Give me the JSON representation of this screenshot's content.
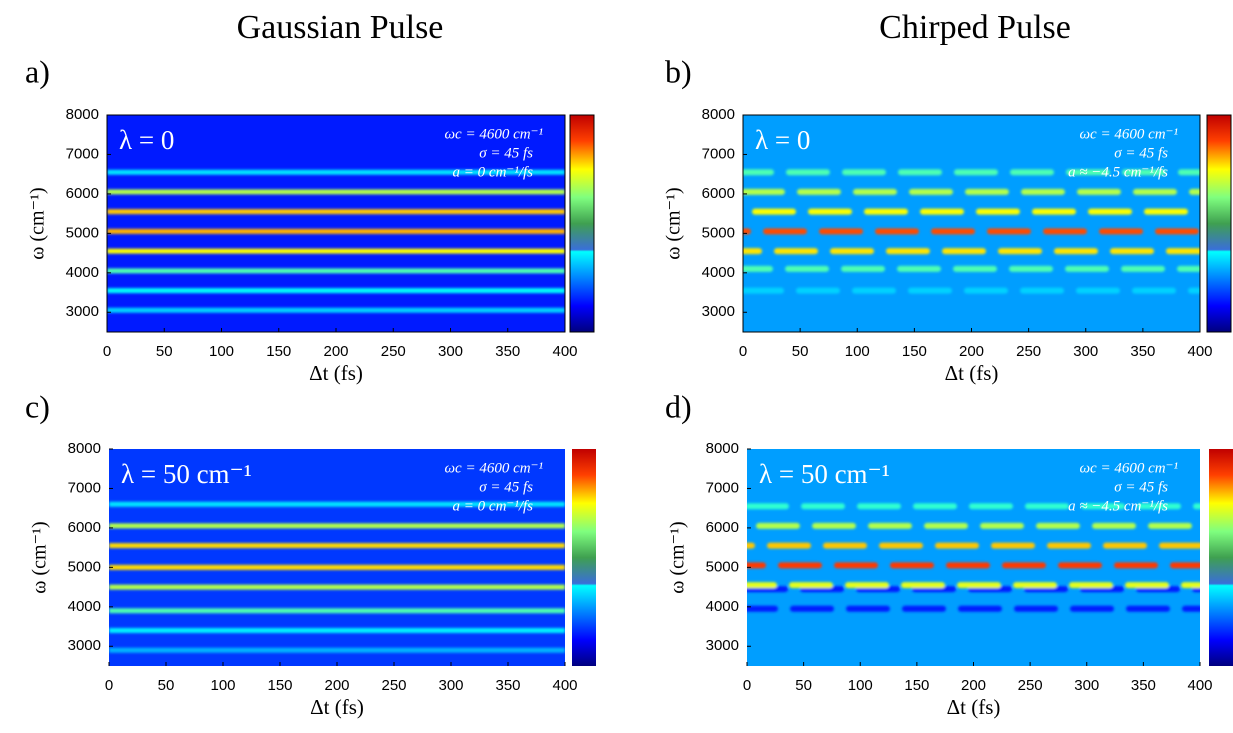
{
  "column_titles": [
    "Gaussian Pulse",
    "Chirped Pulse"
  ],
  "chart_data": [
    {
      "type": "heatmap",
      "label": "a)",
      "annotation": "λ = 0",
      "notes": [
        "ωc = 4600 cm⁻¹",
        "σ = 45 fs",
        "a = 0 cm⁻¹/fs"
      ],
      "xlabel": "Δt (fs)",
      "ylabel": "ω (cm⁻¹)",
      "xlim": [
        0,
        400
      ],
      "xticks": [
        0,
        50,
        100,
        150,
        200,
        250,
        300,
        350,
        400
      ],
      "ylim": [
        2500,
        8000
      ],
      "yticks": [
        3000,
        4000,
        5000,
        6000,
        7000,
        8000
      ],
      "background": 0.15,
      "modulated": false,
      "colorbar_border": true,
      "bands": [
        {
          "y": 3050,
          "intensity": 0.33
        },
        {
          "y": 3550,
          "intensity": 0.38
        },
        {
          "y": 4050,
          "intensity": 0.45
        },
        {
          "y": 4550,
          "intensity": 0.62
        },
        {
          "y": 5050,
          "intensity": 0.7
        },
        {
          "y": 5550,
          "intensity": 0.68
        },
        {
          "y": 6050,
          "intensity": 0.55
        },
        {
          "y": 6550,
          "intensity": 0.35
        }
      ]
    },
    {
      "type": "heatmap",
      "label": "b)",
      "annotation": "λ = 0",
      "notes": [
        "ωc = 4600 cm⁻¹",
        "σ = 45 fs",
        "a ≈ −4.5 cm⁻¹/fs"
      ],
      "xlabel": "Δt (fs)",
      "ylabel": "ω (cm⁻¹)",
      "xlim": [
        0,
        400
      ],
      "xticks": [
        0,
        50,
        100,
        150,
        200,
        250,
        300,
        350,
        400
      ],
      "ylim": [
        2500,
        8000
      ],
      "yticks": [
        3000,
        4000,
        5000,
        6000,
        7000,
        8000
      ],
      "background": 0.28,
      "modulated": true,
      "colorbar_border": true,
      "bands": [
        {
          "y": 3550,
          "intensity": 0.33
        },
        {
          "y": 4100,
          "intensity": 0.45
        },
        {
          "y": 4550,
          "intensity": 0.65
        },
        {
          "y": 5050,
          "intensity": 0.8
        },
        {
          "y": 5550,
          "intensity": 0.62
        },
        {
          "y": 6050,
          "intensity": 0.55
        },
        {
          "y": 6550,
          "intensity": 0.45
        }
      ]
    },
    {
      "type": "heatmap",
      "label": "c)",
      "annotation": "λ = 50 cm⁻¹",
      "notes": [
        "ωc = 4600 cm⁻¹",
        "σ = 45 fs",
        "a = 0 cm⁻¹/fs"
      ],
      "xlabel": "Δt (fs)",
      "ylabel": "ω (cm⁻¹)",
      "xlim": [
        0,
        400
      ],
      "xticks": [
        0,
        50,
        100,
        150,
        200,
        250,
        300,
        350,
        400
      ],
      "ylim": [
        2500,
        8000
      ],
      "yticks": [
        3000,
        4000,
        5000,
        6000,
        7000,
        8000
      ],
      "background": 0.18,
      "modulated": false,
      "colorbar_border": false,
      "bands": [
        {
          "y": 2900,
          "intensity": 0.3
        },
        {
          "y": 3400,
          "intensity": 0.36
        },
        {
          "y": 3900,
          "intensity": 0.45
        },
        {
          "y": 4500,
          "intensity": 0.55
        },
        {
          "y": 5000,
          "intensity": 0.66
        },
        {
          "y": 5550,
          "intensity": 0.66
        },
        {
          "y": 6050,
          "intensity": 0.55
        },
        {
          "y": 6600,
          "intensity": 0.35
        }
      ]
    },
    {
      "type": "heatmap",
      "label": "d)",
      "annotation": "λ = 50 cm⁻¹",
      "notes": [
        "ωc = 4600 cm⁻¹",
        "σ = 45 fs",
        "a ≈ −4.5 cm⁻¹/fs"
      ],
      "xlabel": "Δt (fs)",
      "ylabel": "ω (cm⁻¹)",
      "xlim": [
        0,
        400
      ],
      "xticks": [
        0,
        50,
        100,
        150,
        200,
        250,
        300,
        350,
        400
      ],
      "ylim": [
        2500,
        8000
      ],
      "yticks": [
        3000,
        4000,
        5000,
        6000,
        7000,
        8000
      ],
      "background": 0.28,
      "modulated": true,
      "colorbar_border": false,
      "bands": [
        {
          "y": 4450,
          "intensity": 0.15
        },
        {
          "y": 4550,
          "intensity": 0.6
        },
        {
          "y": 5050,
          "intensity": 0.82
        },
        {
          "y": 5550,
          "intensity": 0.68
        },
        {
          "y": 6050,
          "intensity": 0.55
        },
        {
          "y": 6550,
          "intensity": 0.42
        },
        {
          "y": 3950,
          "intensity": 0.15
        }
      ]
    }
  ]
}
